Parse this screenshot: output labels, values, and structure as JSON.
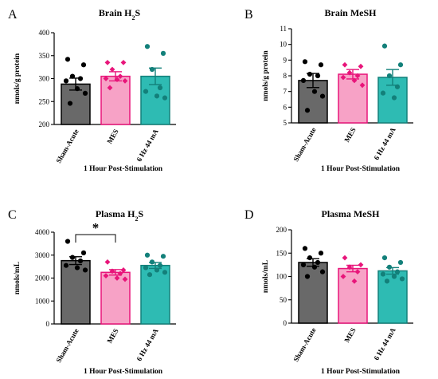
{
  "colors": {
    "sham_fill": "#696969",
    "mes_fill": "#f7a2c6",
    "mes_edge": "#e8157a",
    "hz_fill": "#2ebbb3",
    "hz_edge": "#13807a",
    "axis": "#000000"
  },
  "chart_data": [
    {
      "type": "bar",
      "panel": "A",
      "title_main": "Brain H",
      "title_sub": "2",
      "title_post": "S",
      "ylabel": "nmols/g protein",
      "xlabel": "1 Hour Post-Stimulation",
      "categories": [
        "Sham-Acute",
        "MES",
        "6 Hz 44 mA"
      ],
      "ylim": [
        200,
        400
      ],
      "yticks": [
        200,
        250,
        300,
        350,
        400
      ],
      "means": [
        288,
        305,
        305
      ],
      "sem": [
        13,
        10,
        18
      ],
      "points": [
        [
          342,
          330,
          305,
          300,
          295,
          278,
          268,
          246
        ],
        [
          335,
          335,
          320,
          305,
          300,
          298,
          295,
          280
        ],
        [
          370,
          355,
          320,
          280,
          272,
          262,
          258
        ]
      ],
      "significance": null
    },
    {
      "type": "bar",
      "panel": "B",
      "title_main": "Brain MeSH",
      "title_sub": "",
      "title_post": "",
      "ylabel": "nmols/g protein",
      "xlabel": "1 Hour Post-Stimulation",
      "categories": [
        "Sham-Acute",
        "MES",
        "6 Hz 44 mA"
      ],
      "ylim": [
        5,
        11
      ],
      "yticks": [
        5,
        6,
        7,
        8,
        9,
        10,
        11
      ],
      "means": [
        7.7,
        8.1,
        7.9
      ],
      "sem": [
        0.45,
        0.3,
        0.5
      ],
      "points": [
        [
          8.9,
          8.7,
          8.1,
          8.0,
          7.7,
          7.0,
          6.7,
          5.8
        ],
        [
          8.7,
          8.6,
          8.2,
          8.0,
          7.9,
          7.7,
          7.4
        ],
        [
          9.9,
          8.7,
          8.0,
          7.3,
          6.9,
          6.6
        ]
      ],
      "significance": null
    },
    {
      "type": "bar",
      "panel": "C",
      "title_main": "Plasma H",
      "title_sub": "2",
      "title_post": "S",
      "ylabel": "nmols/mL",
      "xlabel": "1 Hour Post-Stimulation",
      "categories": [
        "Sham-Acute",
        "MES",
        "6 Hz 44 mA"
      ],
      "ylim": [
        0,
        4000
      ],
      "yticks": [
        0,
        1000,
        2000,
        3000,
        4000
      ],
      "means": [
        2760,
        2250,
        2550
      ],
      "sem": [
        170,
        120,
        130
      ],
      "points": [
        [
          3600,
          3100,
          2900,
          2750,
          2550,
          2450,
          2350
        ],
        [
          2700,
          2350,
          2300,
          2200,
          2100,
          2000,
          1950
        ],
        [
          3000,
          2950,
          2700,
          2550,
          2450,
          2350,
          2250,
          2150
        ]
      ],
      "significance": {
        "between": [
          0,
          1
        ],
        "label": "*"
      }
    },
    {
      "type": "bar",
      "panel": "D",
      "title_main": "Plasma MeSH",
      "title_sub": "",
      "title_post": "",
      "ylabel": "nmols/mL",
      "xlabel": "1 Hour Post-Stimulation",
      "categories": [
        "Sham-Acute",
        "MES",
        "6 Hz 44 mA"
      ],
      "ylim": [
        0,
        200
      ],
      "yticks": [
        0,
        50,
        100,
        150,
        200
      ],
      "means": [
        130,
        117,
        112
      ],
      "sem": [
        8,
        7,
        7
      ],
      "points": [
        [
          160,
          150,
          140,
          130,
          125,
          120,
          110,
          100
        ],
        [
          140,
          125,
          120,
          110,
          100,
          90
        ],
        [
          140,
          130,
          120,
          110,
          105,
          100,
          95,
          90
        ]
      ],
      "significance": null
    }
  ]
}
